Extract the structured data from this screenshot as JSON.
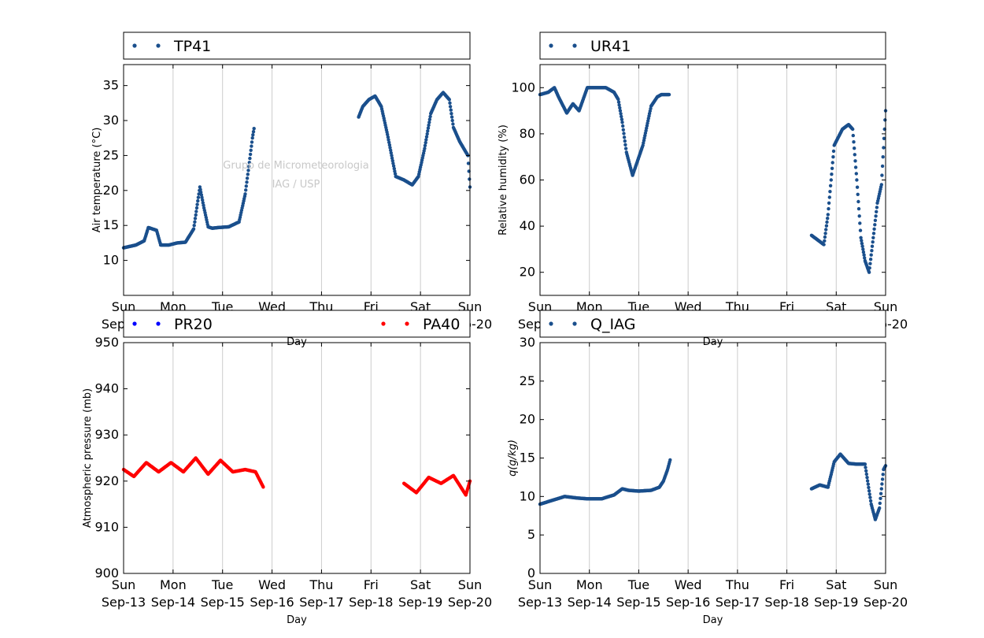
{
  "watermark": {
    "line1": "Grupo de Micrometeorologia",
    "line2": "IAG / USP"
  },
  "colors": {
    "steelblue": "#1a4f8c",
    "blue": "#0000ff",
    "red": "#ff0000",
    "grid": "#cccccc",
    "watermark": "#c8c8c8"
  },
  "x_ticks": [
    {
      "day": "Sun",
      "date": "Sep-13"
    },
    {
      "day": "Mon",
      "date": "Sep-14"
    },
    {
      "day": "Tue",
      "date": "Sep-15"
    },
    {
      "day": "Wed",
      "date": "Sep-16"
    },
    {
      "day": "Thu",
      "date": "Sep-17"
    },
    {
      "day": "Fri",
      "date": "Sep-18"
    },
    {
      "day": "Sat",
      "date": "Sep-19"
    },
    {
      "day": "Sun",
      "date": "Sep-20"
    }
  ],
  "chart_data": [
    {
      "type": "scatter",
      "xlabel": "Day",
      "ylabel": "Air temperature (°C)",
      "ylim": [
        5,
        38
      ],
      "yticks": [
        10,
        15,
        20,
        25,
        30,
        35
      ],
      "xlim": [
        "2015-09-13",
        "2015-09-20"
      ],
      "grid": "vertical",
      "legend": "top",
      "series": [
        {
          "name": "TP41",
          "color": "#1a4f8c",
          "x": [
            "2015-09-13T00:00",
            "2015-09-13T06:00",
            "2015-09-13T10:00",
            "2015-09-13T12:00",
            "2015-09-13T16:00",
            "2015-09-13T18:00",
            "2015-09-13T22:00",
            "2015-09-14T02:00",
            "2015-09-14T06:00",
            "2015-09-14T10:00",
            "2015-09-14T13:00",
            "2015-09-14T15:00",
            "2015-09-14T17:00",
            "2015-09-14T19:00",
            "2015-09-14T22:00",
            "2015-09-15T03:00",
            "2015-09-15T08:00",
            "2015-09-15T11:00",
            "2015-09-15T13:00",
            "2015-09-15T14:30",
            "2015-09-15T15:30",
            "2015-09-17T18:00",
            "2015-09-17T20:00",
            "2015-09-17T23:00",
            "2015-09-18T02:00",
            "2015-09-18T05:00",
            "2015-09-18T08:00",
            "2015-09-18T12:00",
            "2015-09-18T16:00",
            "2015-09-18T20:00",
            "2015-09-18T23:00",
            "2015-09-19T02:00",
            "2015-09-19T05:00",
            "2015-09-19T08:00",
            "2015-09-19T11:00",
            "2015-09-19T14:00",
            "2015-09-19T16:00",
            "2015-09-19T19:00",
            "2015-09-19T21:00",
            "2015-09-19T23:00",
            "2015-09-20T00:00"
          ],
          "y": [
            11.8,
            12.2,
            12.8,
            14.7,
            14.3,
            12.2,
            12.2,
            12.5,
            12.6,
            14.5,
            20.5,
            17.5,
            14.8,
            14.6,
            14.7,
            14.8,
            15.5,
            19.5,
            24,
            27.5,
            29.3,
            30.5,
            32,
            33,
            33.5,
            32,
            28,
            22,
            21.5,
            20.8,
            22,
            26,
            31,
            33,
            34,
            33,
            29,
            27,
            26,
            25,
            20.5
          ]
        }
      ]
    },
    {
      "type": "scatter",
      "xlabel": "Day",
      "ylabel": "Relative humidity (%)",
      "ylim": [
        10,
        110
      ],
      "yticks": [
        20,
        40,
        60,
        80,
        100
      ],
      "xlim": [
        "2015-09-13",
        "2015-09-20"
      ],
      "grid": "vertical",
      "legend": "top",
      "series": [
        {
          "name": "UR41",
          "color": "#1a4f8c",
          "x": [
            "2015-09-13T00:00",
            "2015-09-13T04:00",
            "2015-09-13T07:00",
            "2015-09-13T09:00",
            "2015-09-13T13:00",
            "2015-09-13T16:00",
            "2015-09-13T19:00",
            "2015-09-13T23:00",
            "2015-09-14T04:00",
            "2015-09-14T08:00",
            "2015-09-14T12:00",
            "2015-09-14T14:00",
            "2015-09-14T16:00",
            "2015-09-14T18:00",
            "2015-09-14T21:00",
            "2015-09-15T02:00",
            "2015-09-15T06:00",
            "2015-09-15T09:00",
            "2015-09-15T11:00",
            "2015-09-15T13:00",
            "2015-09-15T15:00",
            "2015-09-18T12:00",
            "2015-09-18T15:00",
            "2015-09-18T18:00",
            "2015-09-18T20:00",
            "2015-09-18T23:00",
            "2015-09-19T03:00",
            "2015-09-19T06:00",
            "2015-09-19T08:00",
            "2015-09-19T10:00",
            "2015-09-19T12:00",
            "2015-09-19T14:00",
            "2015-09-19T16:00",
            "2015-09-19T18:00",
            "2015-09-19T20:00",
            "2015-09-19T22:00",
            "2015-09-20T00:00"
          ],
          "y": [
            97,
            98,
            100,
            96,
            89,
            93,
            90,
            100,
            100,
            100,
            98,
            95,
            85,
            72,
            62,
            75,
            92,
            96,
            97,
            97,
            97,
            36,
            34,
            32,
            45,
            75,
            82,
            84,
            82,
            60,
            35,
            25,
            20,
            35,
            50,
            58,
            90
          ]
        }
      ]
    },
    {
      "type": "scatter",
      "xlabel": "Day",
      "ylabel": "Atmospheric pressure (mb)",
      "ylim": [
        900,
        950
      ],
      "yticks": [
        900,
        910,
        920,
        930,
        940,
        950
      ],
      "xlim": [
        "2015-09-13",
        "2015-09-20"
      ],
      "grid": "vertical",
      "legend": "top",
      "series": [
        {
          "name": "PR20",
          "color": "#0000ff",
          "x": [],
          "y": []
        },
        {
          "name": "PA40",
          "color": "#ff0000",
          "x": [
            "2015-09-13T00:00",
            "2015-09-13T05:00",
            "2015-09-13T11:00",
            "2015-09-13T17:00",
            "2015-09-13T23:00",
            "2015-09-14T05:00",
            "2015-09-14T11:00",
            "2015-09-14T17:00",
            "2015-09-14T23:00",
            "2015-09-15T05:00",
            "2015-09-15T11:00",
            "2015-09-15T16:00",
            "2015-09-15T20:00",
            "2015-09-18T16:00",
            "2015-09-18T22:00",
            "2015-09-19T04:00",
            "2015-09-19T10:00",
            "2015-09-19T16:00",
            "2015-09-19T22:00",
            "2015-09-20T00:00"
          ],
          "y": [
            922.5,
            921,
            924,
            922,
            924,
            922,
            925,
            921.5,
            924.5,
            922,
            922.5,
            922,
            918.5,
            919.5,
            917.5,
            920.8,
            919.5,
            921.2,
            917,
            920
          ]
        }
      ]
    },
    {
      "type": "scatter",
      "xlabel": "Day",
      "ylabel": "q(g/kg)",
      "ylim": [
        0,
        30
      ],
      "yticks": [
        0,
        5,
        10,
        15,
        20,
        25,
        30
      ],
      "xlim": [
        "2015-09-13",
        "2015-09-20"
      ],
      "grid": "vertical",
      "legend": "top",
      "series": [
        {
          "name": "Q_IAG",
          "color": "#1a4f8c",
          "x": [
            "2015-09-13T00:00",
            "2015-09-13T06:00",
            "2015-09-13T12:00",
            "2015-09-13T18:00",
            "2015-09-13T23:00",
            "2015-09-14T06:00",
            "2015-09-14T12:00",
            "2015-09-14T16:00",
            "2015-09-14T19:00",
            "2015-09-15T00:00",
            "2015-09-15T06:00",
            "2015-09-15T10:00",
            "2015-09-15T12:00",
            "2015-09-15T14:00",
            "2015-09-15T15:30",
            "2015-09-18T12:00",
            "2015-09-18T16:00",
            "2015-09-18T20:00",
            "2015-09-18T23:00",
            "2015-09-19T02:00",
            "2015-09-19T06:00",
            "2015-09-19T10:00",
            "2015-09-19T14:00",
            "2015-09-19T17:00",
            "2015-09-19T19:00",
            "2015-09-19T21:00",
            "2015-09-19T23:00",
            "2015-09-20T00:00"
          ],
          "y": [
            9,
            9.5,
            10,
            9.8,
            9.7,
            9.7,
            10.2,
            11,
            10.8,
            10.7,
            10.8,
            11.2,
            12,
            13.5,
            15,
            11,
            11.5,
            11.2,
            14.5,
            15.5,
            14.3,
            14.2,
            14.2,
            9,
            7,
            8.5,
            13.5,
            14
          ]
        }
      ]
    }
  ]
}
